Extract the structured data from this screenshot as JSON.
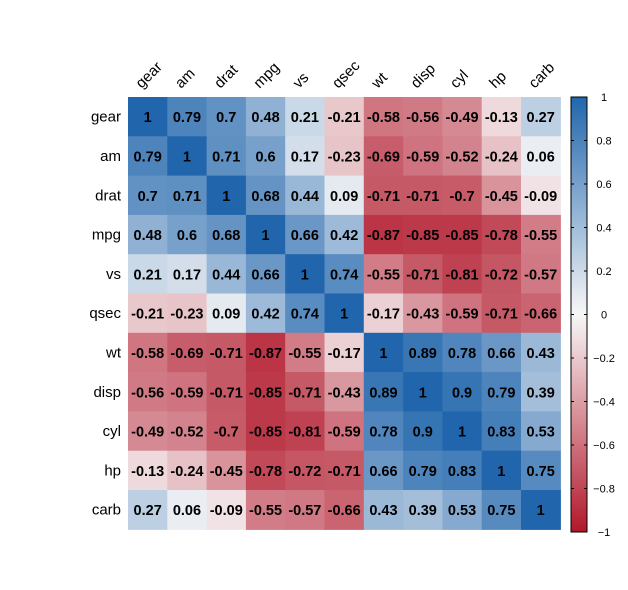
{
  "chart_data": {
    "type": "heatmap",
    "title": "",
    "variables": [
      "gear",
      "am",
      "drat",
      "mpg",
      "vs",
      "qsec",
      "wt",
      "disp",
      "cyl",
      "hp",
      "carb"
    ],
    "matrix": [
      [
        1,
        0.79,
        0.7,
        0.48,
        0.21,
        -0.21,
        -0.58,
        -0.56,
        -0.49,
        -0.13,
        0.27
      ],
      [
        0.79,
        1,
        0.71,
        0.6,
        0.17,
        -0.23,
        -0.69,
        -0.59,
        -0.52,
        -0.24,
        0.06
      ],
      [
        0.7,
        0.71,
        1,
        0.68,
        0.44,
        0.09,
        -0.71,
        -0.71,
        -0.7,
        -0.45,
        -0.09
      ],
      [
        0.48,
        0.6,
        0.68,
        1,
        0.66,
        0.42,
        -0.87,
        -0.85,
        -0.85,
        -0.78,
        -0.55
      ],
      [
        0.21,
        0.17,
        0.44,
        0.66,
        1,
        0.74,
        -0.55,
        -0.71,
        -0.81,
        -0.72,
        -0.57
      ],
      [
        -0.21,
        -0.23,
        0.09,
        0.42,
        0.74,
        1,
        -0.17,
        -0.43,
        -0.59,
        -0.71,
        -0.66
      ],
      [
        -0.58,
        -0.69,
        -0.71,
        -0.87,
        -0.55,
        -0.17,
        1,
        0.89,
        0.78,
        0.66,
        0.43
      ],
      [
        -0.56,
        -0.59,
        -0.71,
        -0.85,
        -0.71,
        -0.43,
        0.89,
        1,
        0.9,
        0.79,
        0.39
      ],
      [
        -0.49,
        -0.52,
        -0.7,
        -0.85,
        -0.81,
        -0.59,
        0.78,
        0.9,
        1,
        0.83,
        0.53
      ],
      [
        -0.13,
        -0.24,
        -0.45,
        -0.78,
        -0.72,
        -0.71,
        0.66,
        0.79,
        0.83,
        1,
        0.75
      ],
      [
        0.27,
        0.06,
        -0.09,
        -0.55,
        -0.57,
        -0.66,
        0.43,
        0.39,
        0.53,
        0.75,
        1
      ]
    ],
    "colorbar": {
      "range": [
        -1,
        1
      ],
      "ticks": [
        "1",
        "0.8",
        "0.6",
        "0.4",
        "0.2",
        "0",
        "−0.2",
        "−0.4",
        "−0.6",
        "−0.8",
        "−1"
      ]
    },
    "colors": {
      "negative": "#b2182b",
      "neutral": "#f7f7f7",
      "positive": "#2166ac"
    }
  }
}
